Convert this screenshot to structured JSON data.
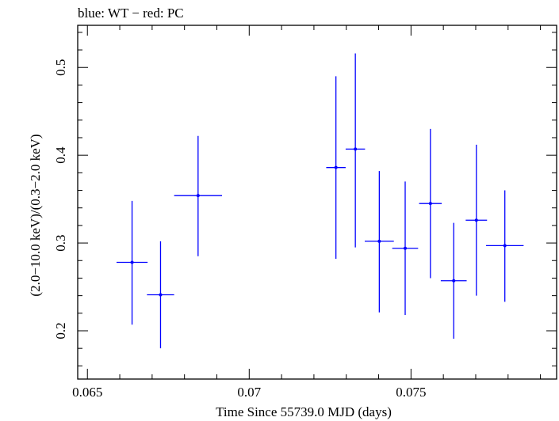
{
  "chart_data": {
    "type": "scatter",
    "title": "blue: WT − red: PC",
    "xlabel": "Time Since 55739.0 MJD (days)",
    "ylabel": "(2.0−10.0 keV)/(0.3−2.0 keV)",
    "xlim": [
      0.0647,
      0.0795
    ],
    "ylim": [
      0.145,
      0.548
    ],
    "xticks": [
      0.065,
      0.07,
      0.075
    ],
    "xtick_labels": [
      "0.065",
      "0.07",
      "0.075"
    ],
    "yticks": [
      0.2,
      0.3,
      0.4,
      0.5
    ],
    "ytick_labels": [
      "0.2",
      "0.3",
      "0.4",
      "0.5"
    ],
    "grid": false,
    "series": [
      {
        "name": "WT",
        "color": "#0000ff",
        "points": [
          {
            "x": 0.06638,
            "xerr": 0.00048,
            "y": 0.278,
            "yerr_low": 0.071,
            "yerr_high": 0.07
          },
          {
            "x": 0.06726,
            "xerr": 0.00042,
            "y": 0.241,
            "yerr_low": 0.061,
            "yerr_high": 0.061
          },
          {
            "x": 0.06842,
            "xerr": 0.00074,
            "y": 0.354,
            "yerr_low": 0.069,
            "yerr_high": 0.068
          },
          {
            "x": 0.07268,
            "xerr": 0.0003,
            "y": 0.386,
            "yerr_low": 0.104,
            "yerr_high": 0.104
          },
          {
            "x": 0.07328,
            "xerr": 0.0003,
            "y": 0.407,
            "yerr_low": 0.112,
            "yerr_high": 0.109
          },
          {
            "x": 0.07402,
            "xerr": 0.00045,
            "y": 0.302,
            "yerr_low": 0.081,
            "yerr_high": 0.08
          },
          {
            "x": 0.07482,
            "xerr": 0.0004,
            "y": 0.294,
            "yerr_low": 0.076,
            "yerr_high": 0.076
          },
          {
            "x": 0.0756,
            "xerr": 0.00035,
            "y": 0.345,
            "yerr_low": 0.085,
            "yerr_high": 0.085
          },
          {
            "x": 0.07632,
            "xerr": 0.0004,
            "y": 0.257,
            "yerr_low": 0.066,
            "yerr_high": 0.066
          },
          {
            "x": 0.07702,
            "xerr": 0.00033,
            "y": 0.326,
            "yerr_low": 0.086,
            "yerr_high": 0.086
          },
          {
            "x": 0.0779,
            "xerr": 0.00058,
            "y": 0.297,
            "yerr_low": 0.064,
            "yerr_high": 0.063
          }
        ]
      }
    ]
  }
}
